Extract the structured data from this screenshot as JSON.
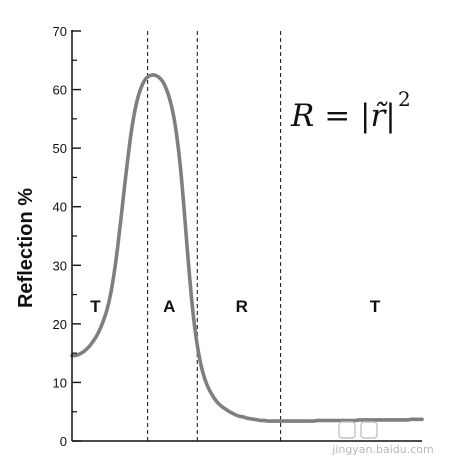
{
  "chart_data": {
    "type": "line",
    "title": "",
    "xlabel": "",
    "ylabel": "Reflection %",
    "ylim": [
      0,
      70
    ],
    "yticks": [
      "0",
      "10",
      "20",
      "30",
      "40",
      "50",
      "60",
      "70"
    ],
    "grid": false,
    "series": [
      {
        "color": "#7f7f7f",
        "x": [
          0,
          1,
          2,
          3,
          4,
          5,
          6,
          7,
          8,
          9,
          10,
          11,
          12,
          13,
          14,
          15,
          16,
          17,
          18,
          19,
          20,
          21,
          22,
          23,
          24,
          25,
          26,
          27,
          28,
          29,
          30,
          31,
          32,
          33,
          34,
          35,
          36,
          37,
          38,
          39,
          40,
          41,
          42,
          43,
          44,
          45,
          46,
          47,
          48,
          49,
          50,
          51,
          52,
          53,
          54,
          55,
          56,
          57,
          58,
          59,
          60,
          61,
          62,
          63,
          64,
          65,
          66,
          67,
          68,
          69,
          70,
          71,
          72,
          73,
          74,
          75,
          76,
          77,
          78,
          79,
          80,
          81,
          82,
          83,
          84,
          85,
          86,
          87,
          88,
          89,
          90,
          91,
          92,
          93,
          94,
          95,
          96,
          97,
          98,
          99,
          100
        ],
        "values": [
          14.6,
          14.6,
          14.8,
          15.1,
          15.6,
          16.2,
          17,
          17.9,
          19.1,
          20.6,
          22.4,
          25,
          28.5,
          32.9,
          38,
          43.4,
          48.5,
          53,
          56.5,
          59,
          60.7,
          61.8,
          62.3,
          62.5,
          62.4,
          62,
          61.3,
          60,
          58.2,
          55.6,
          51.8,
          46.6,
          39.8,
          32.3,
          25.3,
          19.7,
          15.6,
          12.6,
          10.5,
          9,
          7.9,
          7,
          6.3,
          5.8,
          5.4,
          5,
          4.7,
          4.4,
          4.2,
          4.1,
          3.9,
          3.8,
          3.7,
          3.6,
          3.5,
          3.5,
          3.4,
          3.4,
          3.4,
          3.4,
          3.4,
          3.4,
          3.4,
          3.4,
          3.4,
          3.4,
          3.4,
          3.4,
          3.4,
          3.4,
          3.5,
          3.5,
          3.5,
          3.5,
          3.5,
          3.5,
          3.5,
          3.5,
          3.5,
          3.5,
          3.5,
          3.5,
          3.6,
          3.6,
          3.6,
          3.6,
          3.6,
          3.6,
          3.6,
          3.6,
          3.6,
          3.6,
          3.6,
          3.6,
          3.6,
          3.6,
          3.6,
          3.7,
          3.7,
          3.7,
          3.7
        ]
      }
    ],
    "region_boundaries_x": [
      21.6,
      35.8,
      59.6
    ],
    "regions": [
      {
        "label": "T",
        "x": 6.7
      },
      {
        "label": "A",
        "x": 27.8
      },
      {
        "label": "R",
        "x": 48.5
      },
      {
        "label": "T",
        "x": 86.6
      }
    ],
    "formula": {
      "text": "R = |r̃|",
      "superscript": "2"
    }
  },
  "watermark": "jingyan.baidu.com"
}
